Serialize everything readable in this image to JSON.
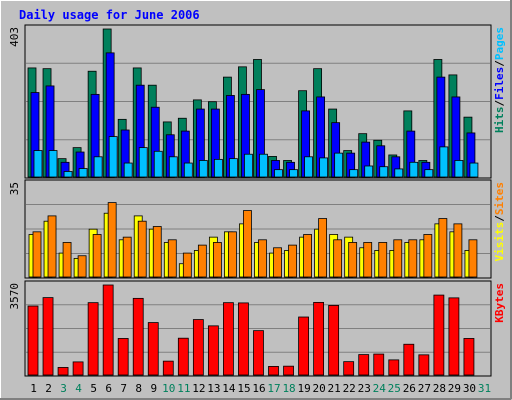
{
  "title": "Daily usage for June 2006",
  "colors": {
    "background": "#C0C0C0",
    "title_text": "#0000FF",
    "hits": "#00805C",
    "files": "#0000FF",
    "pages": "#00C0FF",
    "visits": "#FFFF00",
    "sites": "#FF8000",
    "kbytes": "#FF0000",
    "weekday_label": "#000000",
    "weekend_label": "#00805C"
  },
  "chart_data": [
    {
      "type": "bar",
      "panel": "hits-files-pages",
      "ymax_label": "403",
      "ylim": [
        0,
        403
      ],
      "x": [
        1,
        2,
        3,
        4,
        5,
        6,
        7,
        8,
        9,
        10,
        11,
        12,
        13,
        14,
        15,
        16,
        17,
        18,
        19,
        20,
        21,
        22,
        23,
        24,
        25,
        26,
        27,
        28,
        29,
        30
      ],
      "series": [
        {
          "name": "Hits",
          "values": [
            297,
            295,
            50,
            80,
            288,
            403,
            157,
            297,
            250,
            150,
            160,
            210,
            205,
            272,
            300,
            320,
            56,
            45,
            235,
            295,
            185,
            72,
            118,
            100,
            60,
            180,
            45,
            320,
            278,
            163
          ]
        },
        {
          "name": "Files",
          "values": [
            230,
            248,
            40,
            68,
            225,
            338,
            128,
            250,
            190,
            115,
            125,
            185,
            185,
            222,
            225,
            238,
            45,
            40,
            180,
            218,
            148,
            65,
            95,
            85,
            55,
            125,
            40,
            272,
            218,
            120
          ]
        },
        {
          "name": "Pages",
          "values": [
            72,
            72,
            15,
            23,
            55,
            110,
            38,
            80,
            70,
            55,
            38,
            45,
            48,
            50,
            62,
            62,
            20,
            20,
            55,
            52,
            65,
            20,
            30,
            28,
            22,
            40,
            20,
            82,
            45,
            38
          ]
        }
      ],
      "legend": [
        "Pages",
        "/",
        "Files",
        "/",
        "Hits"
      ]
    },
    {
      "type": "bar",
      "panel": "visits-sites",
      "ymax_label": "35",
      "ylim": [
        0,
        35
      ],
      "x": [
        1,
        2,
        3,
        4,
        5,
        6,
        7,
        8,
        9,
        10,
        11,
        12,
        13,
        14,
        15,
        16,
        17,
        18,
        19,
        20,
        21,
        22,
        23,
        24,
        25,
        26,
        27,
        28,
        29,
        30
      ],
      "series": [
        {
          "name": "Visits",
          "values": [
            16,
            21,
            9,
            7,
            18,
            24,
            14,
            23,
            18,
            13,
            5,
            10,
            15,
            17,
            20,
            13,
            9,
            10,
            15,
            18,
            16,
            15,
            11,
            10,
            10,
            13,
            14,
            20,
            17,
            10
          ]
        },
        {
          "name": "Sites",
          "values": [
            17,
            23,
            13,
            8,
            16,
            28,
            15,
            21,
            19,
            14,
            9,
            12,
            13,
            17,
            25,
            14,
            11,
            12,
            16,
            22,
            14,
            13,
            13,
            13,
            14,
            14,
            16,
            22,
            20,
            14
          ]
        }
      ],
      "legend": [
        "Sites",
        "/",
        "Visits"
      ]
    },
    {
      "type": "bar",
      "panel": "kbytes",
      "ymax_label": "3570",
      "ylim": [
        0,
        3570
      ],
      "x": [
        1,
        2,
        3,
        4,
        5,
        6,
        7,
        8,
        9,
        10,
        11,
        12,
        13,
        14,
        15,
        16,
        17,
        18,
        19,
        20,
        21,
        22,
        23,
        24,
        25,
        26,
        27,
        28,
        29,
        30
      ],
      "series": [
        {
          "name": "KBytes",
          "values": [
            2735,
            3070,
            300,
            520,
            2870,
            3570,
            1450,
            3040,
            2080,
            550,
            1460,
            2200,
            1950,
            2870,
            2860,
            1760,
            340,
            350,
            2300,
            2880,
            2760,
            530,
            810,
            830,
            600,
            1220,
            800,
            3170,
            3060,
            1450
          ]
        }
      ],
      "legend": [
        "KBytes"
      ]
    }
  ],
  "x_labels": [
    {
      "label": "1",
      "weekend": false
    },
    {
      "label": "2",
      "weekend": false
    },
    {
      "label": "3",
      "weekend": true
    },
    {
      "label": "4",
      "weekend": true
    },
    {
      "label": "5",
      "weekend": false
    },
    {
      "label": "6",
      "weekend": false
    },
    {
      "label": "7",
      "weekend": false
    },
    {
      "label": "8",
      "weekend": false
    },
    {
      "label": "9",
      "weekend": false
    },
    {
      "label": "10",
      "weekend": true
    },
    {
      "label": "11",
      "weekend": true
    },
    {
      "label": "12",
      "weekend": false
    },
    {
      "label": "13",
      "weekend": false
    },
    {
      "label": "14",
      "weekend": false
    },
    {
      "label": "15",
      "weekend": false
    },
    {
      "label": "16",
      "weekend": false
    },
    {
      "label": "17",
      "weekend": true
    },
    {
      "label": "18",
      "weekend": true
    },
    {
      "label": "19",
      "weekend": false
    },
    {
      "label": "20",
      "weekend": false
    },
    {
      "label": "21",
      "weekend": false
    },
    {
      "label": "22",
      "weekend": false
    },
    {
      "label": "23",
      "weekend": false
    },
    {
      "label": "24",
      "weekend": true
    },
    {
      "label": "25",
      "weekend": true
    },
    {
      "label": "26",
      "weekend": false
    },
    {
      "label": "27",
      "weekend": false
    },
    {
      "label": "28",
      "weekend": false
    },
    {
      "label": "29",
      "weekend": false
    },
    {
      "label": "30",
      "weekend": false
    },
    {
      "label": "31",
      "weekend": true
    }
  ]
}
